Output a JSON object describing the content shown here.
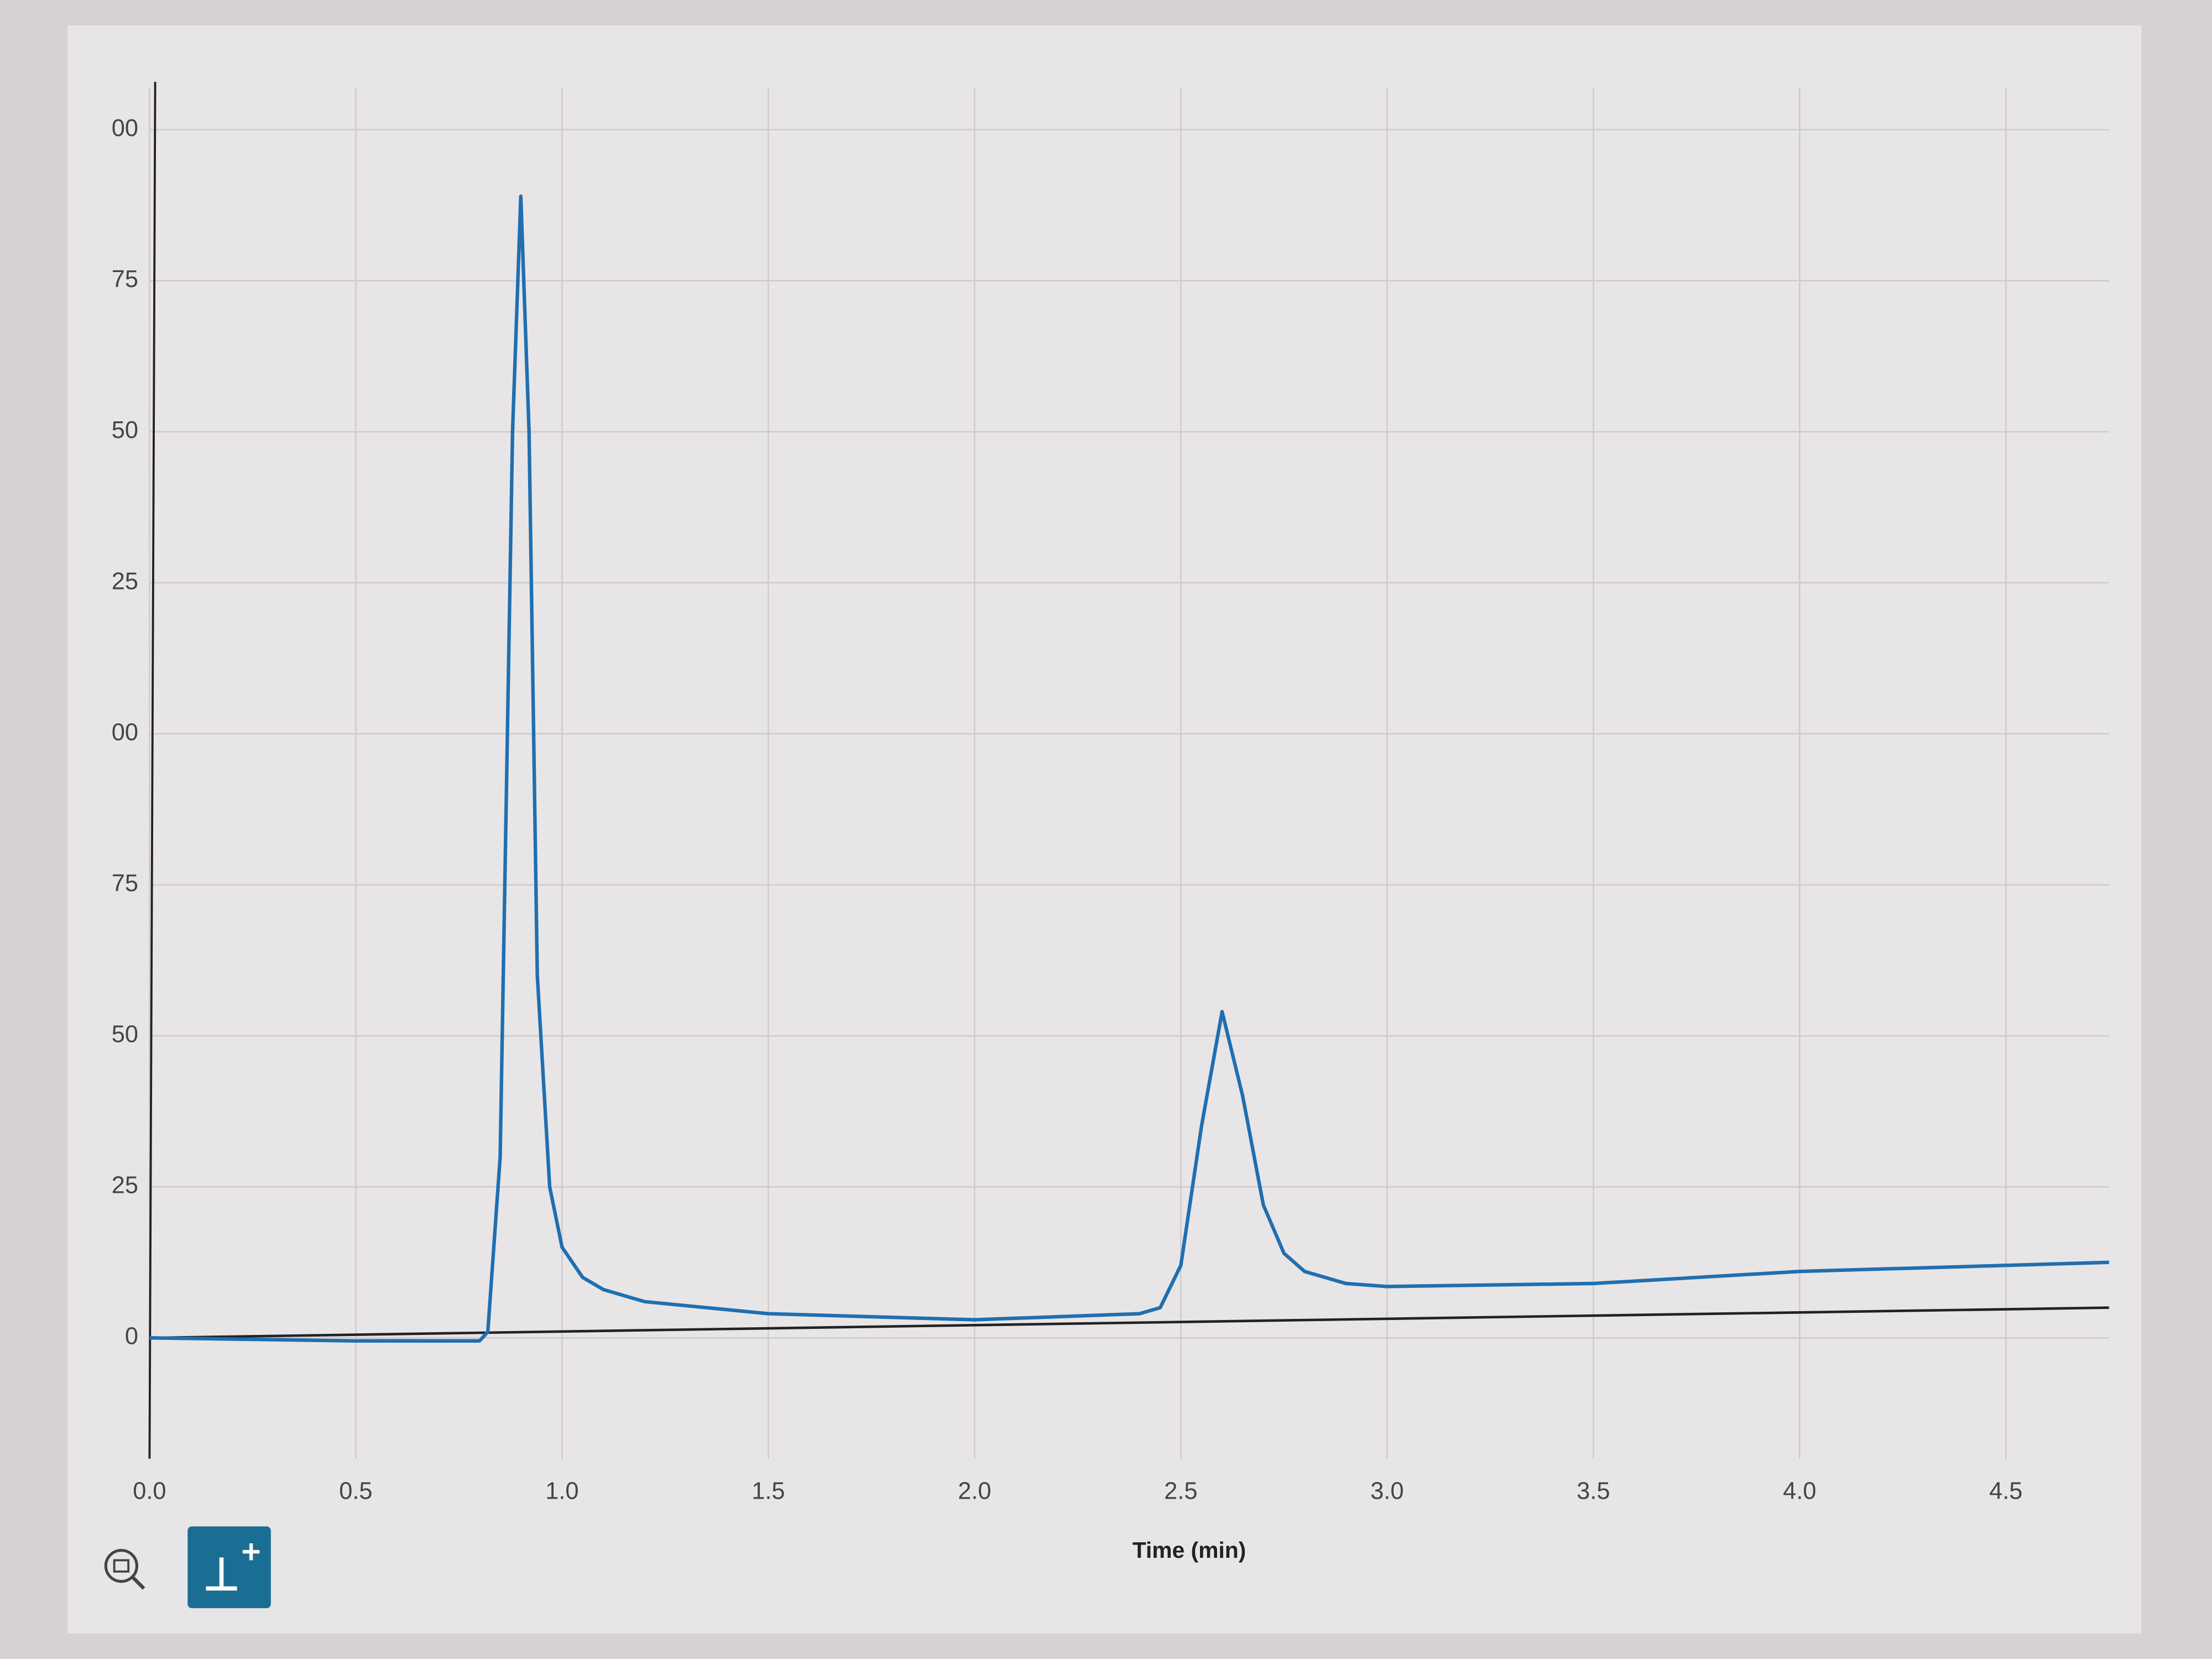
{
  "chart_data": {
    "type": "line",
    "x_label": "Time (min)",
    "xlim": [
      0,
      4.75
    ],
    "ylim": [
      -20,
      207
    ],
    "xticks": [
      {
        "value": 0,
        "label": "0.0"
      },
      0.5,
      {
        "value": 1,
        "label": "1.0"
      },
      1.5,
      {
        "value": 2,
        "label": "2.0"
      },
      2.5,
      {
        "value": 3,
        "label": "3.0"
      },
      3.5,
      {
        "value": 4,
        "label": "4.0"
      },
      4.5
    ],
    "yticks": [
      0,
      25,
      50,
      75,
      {
        "value": 100,
        "label": "00"
      },
      {
        "value": 125,
        "label": "25"
      },
      {
        "value": 150,
        "label": "50"
      },
      {
        "value": 175,
        "label": "75"
      },
      {
        "value": 200,
        "label": "00"
      }
    ],
    "grid": true,
    "series": [
      {
        "color": "#1f6fb0",
        "x": [
          0,
          0.5,
          0.8,
          0.82,
          0.85,
          0.88,
          0.9,
          0.92,
          0.94,
          0.97,
          1.0,
          1.05,
          1.1,
          1.2,
          1.5,
          2.0,
          2.4,
          2.45,
          2.5,
          2.55,
          2.6,
          2.65,
          2.7,
          2.75,
          2.8,
          2.9,
          3.0,
          3.5,
          4.0,
          4.5,
          4.75
        ],
        "values": [
          0,
          -0.5,
          -0.5,
          1,
          30,
          150,
          189,
          150,
          60,
          25,
          15,
          10,
          8,
          6,
          4,
          3,
          4,
          5,
          12,
          35,
          54,
          40,
          22,
          14,
          11,
          9,
          8.5,
          9,
          11,
          12,
          12.5
        ]
      }
    ],
    "baseline": {
      "color": "#222222",
      "x": [
        0,
        4.75
      ],
      "values": [
        0,
        5
      ]
    }
  }
}
